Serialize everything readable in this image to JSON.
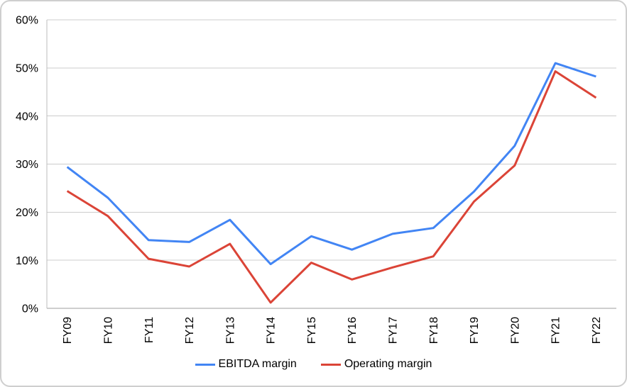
{
  "chart_data": {
    "type": "line",
    "categories": [
      "FY09",
      "FY10",
      "FY11",
      "FY12",
      "FY13",
      "FY14",
      "FY15",
      "FY16",
      "FY17",
      "FY18",
      "FY19",
      "FY20",
      "FY21",
      "FY22"
    ],
    "series": [
      {
        "name": "EBITDA margin",
        "color": "#4285f4",
        "values": [
          29.4,
          23.0,
          14.2,
          13.8,
          18.4,
          9.2,
          15.0,
          12.2,
          15.5,
          16.7,
          24.3,
          33.8,
          51.0,
          48.2
        ]
      },
      {
        "name": "Operating margin",
        "color": "#db4437",
        "values": [
          24.4,
          19.2,
          10.3,
          8.7,
          13.4,
          1.2,
          9.5,
          6.0,
          8.5,
          10.8,
          22.2,
          29.7,
          49.3,
          43.8
        ]
      }
    ],
    "ylim": [
      0,
      60
    ],
    "y_ticks": [
      {
        "value": 0,
        "label": "0%"
      },
      {
        "value": 10,
        "label": "10%"
      },
      {
        "value": 20,
        "label": "20%"
      },
      {
        "value": 30,
        "label": "30%"
      },
      {
        "value": 40,
        "label": "40%"
      },
      {
        "value": 50,
        "label": "50%"
      },
      {
        "value": 60,
        "label": "60%"
      }
    ],
    "grid": true,
    "legend_position": "bottom",
    "x_label_rotation": -90
  },
  "style": {
    "background": "#ffffff",
    "frame_border_color": "#cfcfcf",
    "gridline_color": "#cccccc",
    "baseline_color": "#9e9e9e",
    "axis_line_color": "#bdbdbd",
    "text_color": "#000000",
    "line_width": 3
  }
}
